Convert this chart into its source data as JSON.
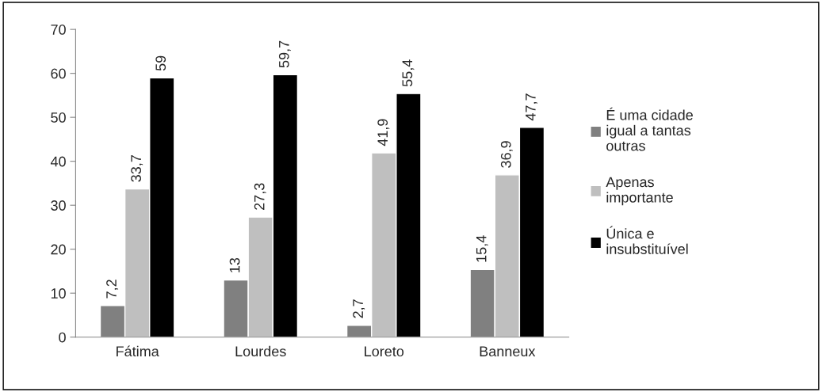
{
  "chart_data": {
    "type": "bar",
    "categories": [
      "Fátima",
      "Lourdes",
      "Loreto",
      "Banneux"
    ],
    "series": [
      {
        "name": "É uma cidade\nigual a tantas\noutras",
        "color": "#808080",
        "values": [
          7.2,
          13,
          2.7,
          15.4
        ],
        "value_labels": [
          "7,2",
          "13",
          "2,7",
          "15,4"
        ]
      },
      {
        "name": "Apenas\nimportante",
        "color": "#bfbfbf",
        "values": [
          33.7,
          27.3,
          41.9,
          36.9
        ],
        "value_labels": [
          "33,7",
          "27,3",
          "41,9",
          "36,9"
        ]
      },
      {
        "name": "Única e\ninsubstituível",
        "color": "#000000",
        "values": [
          59,
          59.7,
          55.4,
          47.7
        ],
        "value_labels": [
          "59",
          "59,7",
          "55,4",
          "47,7"
        ]
      }
    ],
    "ylim": [
      0,
      70
    ],
    "yticks": [
      0,
      10,
      20,
      30,
      40,
      50,
      60,
      70
    ],
    "grid": false,
    "legend": "right"
  }
}
